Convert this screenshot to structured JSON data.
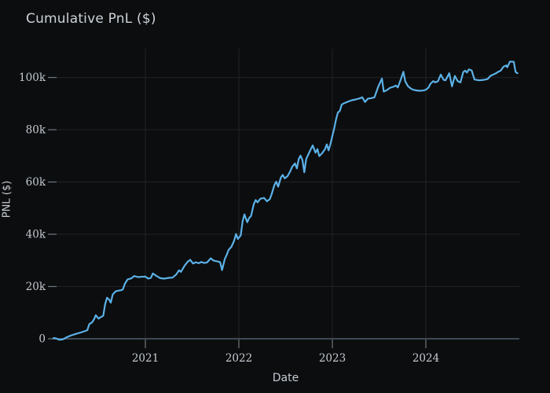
{
  "colors": {
    "background": "#0c0d0e",
    "line": "#5bb1e7",
    "grid": "#202327",
    "axis_line": "#46525f",
    "tick_mark": "#6e7880",
    "title_text": "#ccd3d9",
    "tick_text": "#c4cbd2",
    "label_text": "#c4cbd2"
  },
  "chart_data": {
    "type": "line",
    "title": "Cumulative PnL ($)",
    "xlabel": "Date",
    "ylabel": "PNL ($)",
    "x_range": [
      2020,
      2025
    ],
    "y_range_thousands": [
      0,
      111
    ],
    "grid": "on",
    "legend": "none",
    "x_ticks": {
      "values": [
        2021,
        2022,
        2023,
        2024
      ],
      "labels": [
        "2021",
        "2022",
        "2023",
        "2024"
      ]
    },
    "y_ticks": {
      "values": [
        0,
        20,
        40,
        60,
        80,
        100
      ],
      "labels": [
        "0",
        "20k",
        "40k",
        "60k",
        "80k",
        "100k"
      ]
    },
    "series": [
      {
        "name": "cumulative-pnl",
        "units": "thousands of dollars",
        "points": [
          [
            2020.02,
            0.3
          ],
          [
            2020.05,
            0.1
          ],
          [
            2020.08,
            -0.4
          ],
          [
            2020.12,
            -0.2
          ],
          [
            2020.16,
            0.6
          ],
          [
            2020.2,
            1.2
          ],
          [
            2020.26,
            1.9
          ],
          [
            2020.31,
            2.4
          ],
          [
            2020.36,
            3.0
          ],
          [
            2020.38,
            3.3
          ],
          [
            2020.4,
            5.6
          ],
          [
            2020.43,
            6.3
          ],
          [
            2020.45,
            7.4
          ],
          [
            2020.47,
            9.0
          ],
          [
            2020.5,
            7.7
          ],
          [
            2020.52,
            8.2
          ],
          [
            2020.55,
            8.8
          ],
          [
            2020.57,
            13.2
          ],
          [
            2020.59,
            15.7
          ],
          [
            2020.61,
            15.1
          ],
          [
            2020.63,
            13.8
          ],
          [
            2020.65,
            16.9
          ],
          [
            2020.68,
            18.1
          ],
          [
            2020.71,
            18.4
          ],
          [
            2020.74,
            18.6
          ],
          [
            2020.76,
            18.9
          ],
          [
            2020.78,
            21.0
          ],
          [
            2020.81,
            22.7
          ],
          [
            2020.85,
            23.1
          ],
          [
            2020.88,
            24.0
          ],
          [
            2020.92,
            23.6
          ],
          [
            2020.96,
            23.7
          ],
          [
            2021.0,
            23.8
          ],
          [
            2021.03,
            23.0
          ],
          [
            2021.06,
            23.3
          ],
          [
            2021.08,
            25.0
          ],
          [
            2021.12,
            24.0
          ],
          [
            2021.16,
            23.2
          ],
          [
            2021.2,
            23.0
          ],
          [
            2021.25,
            23.3
          ],
          [
            2021.29,
            23.4
          ],
          [
            2021.33,
            24.6
          ],
          [
            2021.36,
            26.2
          ],
          [
            2021.38,
            25.6
          ],
          [
            2021.42,
            28.0
          ],
          [
            2021.45,
            29.4
          ],
          [
            2021.48,
            30.2
          ],
          [
            2021.51,
            28.8
          ],
          [
            2021.54,
            29.3
          ],
          [
            2021.57,
            28.9
          ],
          [
            2021.6,
            29.4
          ],
          [
            2021.63,
            29.0
          ],
          [
            2021.66,
            29.2
          ],
          [
            2021.7,
            30.8
          ],
          [
            2021.73,
            29.9
          ],
          [
            2021.77,
            29.6
          ],
          [
            2021.8,
            29.3
          ],
          [
            2021.82,
            26.3
          ],
          [
            2021.85,
            30.5
          ],
          [
            2021.87,
            32.1
          ],
          [
            2021.89,
            34.0
          ],
          [
            2021.92,
            35.2
          ],
          [
            2021.95,
            37.6
          ],
          [
            2021.97,
            40.1
          ],
          [
            2021.99,
            38.2
          ],
          [
            2022.02,
            39.6
          ],
          [
            2022.04,
            45.0
          ],
          [
            2022.06,
            47.6
          ],
          [
            2022.09,
            44.6
          ],
          [
            2022.11,
            46.2
          ],
          [
            2022.13,
            47.0
          ],
          [
            2022.16,
            51.5
          ],
          [
            2022.18,
            53.1
          ],
          [
            2022.2,
            52.2
          ],
          [
            2022.23,
            53.6
          ],
          [
            2022.27,
            53.9
          ],
          [
            2022.3,
            52.6
          ],
          [
            2022.33,
            53.4
          ],
          [
            2022.35,
            55.2
          ],
          [
            2022.38,
            58.8
          ],
          [
            2022.4,
            60.1
          ],
          [
            2022.42,
            58.2
          ],
          [
            2022.45,
            61.8
          ],
          [
            2022.47,
            62.7
          ],
          [
            2022.49,
            61.4
          ],
          [
            2022.52,
            62.2
          ],
          [
            2022.55,
            64.1
          ],
          [
            2022.57,
            65.8
          ],
          [
            2022.6,
            67.1
          ],
          [
            2022.62,
            65.2
          ],
          [
            2022.64,
            68.8
          ],
          [
            2022.66,
            70.1
          ],
          [
            2022.68,
            68.4
          ],
          [
            2022.7,
            63.7
          ],
          [
            2022.72,
            68.8
          ],
          [
            2022.75,
            71.1
          ],
          [
            2022.77,
            72.6
          ],
          [
            2022.79,
            74.0
          ],
          [
            2022.82,
            71.2
          ],
          [
            2022.84,
            72.6
          ],
          [
            2022.86,
            69.9
          ],
          [
            2022.89,
            71.0
          ],
          [
            2022.92,
            72.5
          ],
          [
            2022.94,
            74.4
          ],
          [
            2022.96,
            72.1
          ],
          [
            2022.98,
            74.6
          ],
          [
            2023.0,
            77.6
          ],
          [
            2023.02,
            80.6
          ],
          [
            2023.04,
            84.1
          ],
          [
            2023.06,
            86.6
          ],
          [
            2023.08,
            87.2
          ],
          [
            2023.1,
            89.6
          ],
          [
            2023.13,
            90.2
          ],
          [
            2023.17,
            90.8
          ],
          [
            2023.21,
            91.3
          ],
          [
            2023.25,
            91.6
          ],
          [
            2023.29,
            92.0
          ],
          [
            2023.32,
            92.4
          ],
          [
            2023.35,
            90.6
          ],
          [
            2023.38,
            91.9
          ],
          [
            2023.42,
            92.1
          ],
          [
            2023.45,
            92.4
          ],
          [
            2023.49,
            96.4
          ],
          [
            2023.53,
            99.6
          ],
          [
            2023.55,
            94.6
          ],
          [
            2023.58,
            95.1
          ],
          [
            2023.62,
            96.1
          ],
          [
            2023.65,
            96.4
          ],
          [
            2023.68,
            96.9
          ],
          [
            2023.7,
            96.2
          ],
          [
            2023.73,
            99.1
          ],
          [
            2023.76,
            102.2
          ],
          [
            2023.78,
            98.5
          ],
          [
            2023.81,
            96.6
          ],
          [
            2023.85,
            95.5
          ],
          [
            2023.89,
            95.1
          ],
          [
            2023.93,
            94.9
          ],
          [
            2023.97,
            95.0
          ],
          [
            2024.0,
            95.3
          ],
          [
            2024.03,
            96.2
          ],
          [
            2024.05,
            97.6
          ],
          [
            2024.08,
            98.6
          ],
          [
            2024.1,
            98.1
          ],
          [
            2024.13,
            98.6
          ],
          [
            2024.16,
            101.1
          ],
          [
            2024.19,
            99.1
          ],
          [
            2024.21,
            98.9
          ],
          [
            2024.25,
            101.6
          ],
          [
            2024.28,
            96.6
          ],
          [
            2024.31,
            100.6
          ],
          [
            2024.34,
            98.6
          ],
          [
            2024.37,
            98.1
          ],
          [
            2024.4,
            102.1
          ],
          [
            2024.42,
            102.6
          ],
          [
            2024.44,
            101.9
          ],
          [
            2024.46,
            103.1
          ],
          [
            2024.49,
            102.7
          ],
          [
            2024.52,
            99.2
          ],
          [
            2024.57,
            98.9
          ],
          [
            2024.62,
            99.1
          ],
          [
            2024.66,
            99.4
          ],
          [
            2024.69,
            100.6
          ],
          [
            2024.72,
            101.1
          ],
          [
            2024.75,
            101.6
          ],
          [
            2024.77,
            102.1
          ],
          [
            2024.8,
            102.6
          ],
          [
            2024.83,
            104.1
          ],
          [
            2024.86,
            104.6
          ],
          [
            2024.87,
            103.9
          ],
          [
            2024.9,
            106.1
          ],
          [
            2024.94,
            106.0
          ],
          [
            2024.96,
            102.1
          ],
          [
            2024.98,
            101.6
          ]
        ]
      }
    ]
  }
}
